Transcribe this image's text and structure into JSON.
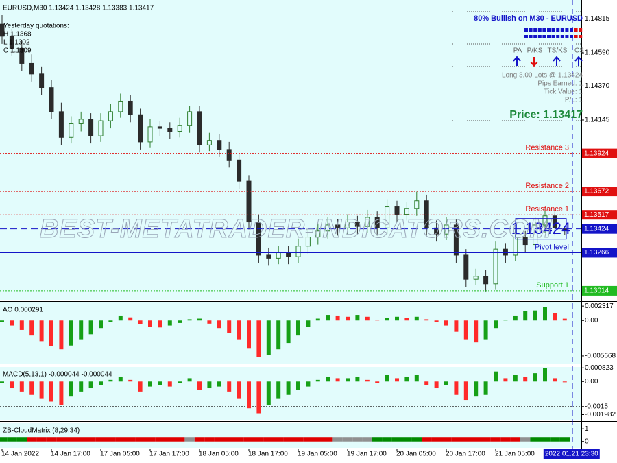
{
  "chart_data": [
    {
      "type": "candlestick",
      "title": "EURUSD,M30  1.13424 1.13428 1.13383 1.13417",
      "categories": [
        "14 Jan 2022",
        null,
        null,
        null,
        null,
        "14 Jan 17:00",
        null,
        null,
        null,
        null,
        "17 Jan 05:00",
        null,
        null,
        null,
        null,
        "17 Jan 17:00",
        null,
        null,
        null,
        null,
        "18 Jan 05:00",
        null,
        null,
        null,
        null,
        "18 Jan 17:00",
        null,
        null,
        null,
        null,
        "19 Jan 05:00",
        null,
        null,
        null,
        null,
        "19 Jan 17:00",
        null,
        null,
        null,
        null,
        "20 Jan 05:00",
        null,
        null,
        null,
        null,
        "20 Jan 17:00",
        null,
        null,
        null,
        null,
        "21 Jan 05:00",
        null,
        null,
        null,
        null,
        null,
        null,
        "2022.01.21 23:30"
      ],
      "open": [
        1.1478,
        1.147,
        1.1462,
        1.1452,
        1.1445,
        1.1436,
        1.142,
        1.1403,
        1.1412,
        1.1415,
        1.1404,
        1.1414,
        1.142,
        1.1427,
        1.1418,
        1.14,
        1.141,
        1.1409,
        1.1407,
        1.1411,
        1.142,
        1.1398,
        1.1401,
        1.1395,
        1.1388,
        1.1374,
        1.1347,
        1.1325,
        1.1323,
        1.1327,
        1.1324,
        1.1331,
        1.1337,
        1.1341,
        1.1345,
        1.1343,
        1.1347,
        1.1344,
        1.135,
        1.1343,
        1.1357,
        1.1352,
        1.1356,
        1.1361,
        1.1343,
        1.1339,
        1.1345,
        1.1325,
        1.1309,
        1.1311,
        1.1306,
        1.1329,
        1.1325,
        1.1337,
        1.1332,
        1.1345,
        1.1351,
        1.13424
      ],
      "high": [
        1.1484,
        1.1475,
        1.1467,
        1.1458,
        1.145,
        1.1441,
        1.1426,
        1.1417,
        1.142,
        1.1419,
        1.1419,
        1.1425,
        1.1432,
        1.1431,
        1.1422,
        1.1415,
        1.1414,
        1.1413,
        1.1416,
        1.1424,
        1.1424,
        1.1406,
        1.1405,
        1.14,
        1.1392,
        1.1378,
        1.1352,
        1.133,
        1.1331,
        1.1331,
        1.1336,
        1.1342,
        1.1346,
        1.135,
        1.1349,
        1.1352,
        1.1351,
        1.1355,
        1.1354,
        1.1362,
        1.1361,
        1.136,
        1.1367,
        1.1365,
        1.1348,
        1.135,
        1.1349,
        1.1329,
        1.1316,
        1.1315,
        1.1334,
        1.1333,
        1.1342,
        1.1341,
        1.135,
        1.1356,
        1.1355,
        1.13428
      ],
      "low": [
        1.1465,
        1.1457,
        1.1447,
        1.144,
        1.1431,
        1.1415,
        1.1398,
        1.1399,
        1.1407,
        1.1399,
        1.14,
        1.1409,
        1.1416,
        1.1413,
        1.1395,
        1.1396,
        1.1404,
        1.1402,
        1.1403,
        1.1406,
        1.1393,
        1.1394,
        1.139,
        1.1383,
        1.1369,
        1.1342,
        1.132,
        1.1318,
        1.1319,
        1.1319,
        1.132,
        1.1326,
        1.1332,
        1.1336,
        1.1338,
        1.1339,
        1.1339,
        1.134,
        1.1338,
        1.1339,
        1.1347,
        1.1348,
        1.1351,
        1.1338,
        1.1334,
        1.1335,
        1.132,
        1.1304,
        1.1305,
        1.1301,
        1.1302,
        1.132,
        1.1321,
        1.1327,
        1.1328,
        1.134,
        1.1338,
        1.13383
      ],
      "close": [
        1.147,
        1.1462,
        1.1452,
        1.1445,
        1.1436,
        1.142,
        1.1403,
        1.1412,
        1.1415,
        1.1404,
        1.1414,
        1.142,
        1.1427,
        1.1418,
        1.14,
        1.141,
        1.1409,
        1.1407,
        1.1411,
        1.142,
        1.1398,
        1.1401,
        1.1395,
        1.1388,
        1.1374,
        1.1347,
        1.1325,
        1.1323,
        1.1327,
        1.1324,
        1.1331,
        1.1337,
        1.1341,
        1.1345,
        1.1343,
        1.1347,
        1.1344,
        1.135,
        1.1343,
        1.1357,
        1.1352,
        1.1356,
        1.1361,
        1.1343,
        1.1339,
        1.1345,
        1.1325,
        1.1309,
        1.1311,
        1.1306,
        1.1329,
        1.1325,
        1.1337,
        1.1332,
        1.1345,
        1.1351,
        1.1343,
        1.13417
      ],
      "up_color": "#2f7f2f",
      "down_color": "#2b2b2b",
      "ylim": [
        1.1295,
        1.1494
      ],
      "yticks": [
        1.14815,
        {
          "value": 1.1459,
          "label": "1.14590"
        },
        {
          "value": 1.1437,
          "label": "1.14370"
        },
        1.14145
      ],
      "levels": [
        {
          "label": "Resistance 3",
          "value": 1.13924,
          "color": "#e01010",
          "style": "dotted"
        },
        {
          "label": "Resistance 2",
          "value": 1.13672,
          "color": "#e01010",
          "style": "dotted"
        },
        {
          "label": "Resistance 1",
          "value": 1.13517,
          "color": "#e01010",
          "style": "dotted"
        },
        {
          "value": 1.13424,
          "color": "#1414c8",
          "style": "dashed"
        },
        {
          "label": "Pivot level",
          "value": 1.13266,
          "color": "#1414c8",
          "style": "solid"
        },
        {
          "label": "Support 1",
          "value": 1.13014,
          "color": "#22bb22",
          "style": "dotted"
        }
      ],
      "yesterday": [
        "Yesterday quotations:",
        "H 1.1368",
        "L 1.1302",
        "C 1.1309"
      ],
      "watermark": "BEST-METATRADER-INDICATORS.COM",
      "panel": {
        "bias": "80% Bullish on M30 - EURUSD",
        "columns": [
          "PA",
          "P/KS",
          "TS/KS",
          "CS"
        ],
        "arrows": [
          "up",
          "down",
          "up",
          "up"
        ],
        "arrow_colors": [
          "#1414c8",
          "#e01010",
          "#1414c8",
          "#1414c8"
        ],
        "lines": [
          "Long 3.00 Lots @ 1.13424",
          "Pips Earned: 1",
          "Tick Value: 1",
          "P/L: 1"
        ],
        "price": "Price: 1.13417",
        "price_color": "#1e8a3c"
      }
    },
    {
      "type": "bar",
      "title": "AO 0.000291",
      "values": [
        -0.0002,
        -0.0008,
        -0.0015,
        -0.0024,
        -0.0033,
        -0.0041,
        -0.0046,
        -0.004,
        -0.003,
        -0.0022,
        -0.0012,
        -0.0003,
        0.0008,
        0.0005,
        -0.0006,
        -0.001,
        -0.0011,
        -0.0008,
        -0.0004,
        0.0002,
        0.0003,
        -0.0005,
        -0.0012,
        -0.002,
        -0.003,
        -0.0045,
        -0.0058,
        -0.0055,
        -0.0046,
        -0.0036,
        -0.0024,
        -0.001,
        0.0003,
        0.0009,
        0.0008,
        0.0006,
        0.0009,
        0.0006,
        0.0001,
        0.0004,
        0.0006,
        0.0004,
        0.0006,
        0.0002,
        -0.0003,
        -0.0008,
        -0.0018,
        -0.003,
        -0.0035,
        -0.003,
        -0.0012,
        0.0001,
        0.0008,
        0.0015,
        0.0016,
        0.0022,
        0.0012,
        0.000291
      ],
      "up_color": "#16a016",
      "down_color": "#ff2a2a",
      "ylim": [
        -0.00699,
        0.00288
      ],
      "yticks": [
        0.002317,
        {
          "value": 0,
          "label": "0.00"
        },
        -0.005668
      ]
    },
    {
      "type": "bar",
      "title": "MACD(5,13,1) -0.000044 -0.000044",
      "values": [
        -0.0001,
        -0.0004,
        -0.0006,
        -0.0008,
        -0.001,
        -0.0012,
        -0.0014,
        -0.0009,
        -0.0006,
        -0.0004,
        -0.0002,
        0.0001,
        0.0003,
        0.0001,
        -0.0006,
        -0.0003,
        -0.0002,
        -0.0003,
        -0.0001,
        0.0002,
        -0.0005,
        -0.0004,
        -0.0003,
        -0.0006,
        -0.001,
        -0.0016,
        -0.0019,
        -0.0014,
        -0.001,
        -0.0008,
        -0.0005,
        -0.0003,
        0.0001,
        0.0003,
        0.0002,
        0.0002,
        0.0003,
        0.0001,
        -0.0001,
        0.0004,
        0.0002,
        0.0003,
        0.0004,
        -0.0002,
        -0.0004,
        -0.0002,
        -0.0008,
        -0.0011,
        -0.0009,
        -0.0008,
        0.0006,
        0.0002,
        0.0004,
        0.0003,
        0.0005,
        0.0008,
        0.0002,
        -4.4e-05
      ],
      "up_color": "#16a016",
      "down_color": "#ff2a2a",
      "ylim": [
        -0.00229,
        0.000875
      ],
      "yticks": [
        0.000823,
        {
          "value": 0,
          "label": "0.00"
        },
        -0.0015,
        -0.001982
      ]
    },
    {
      "type": "strip",
      "title": "ZB-CloudMatrix (8,29,34)",
      "colors": [
        "#008a00",
        "#008a00",
        "#008a00",
        "#e00000",
        "#e00000",
        "#e00000",
        "#e00000",
        "#e00000",
        "#e00000",
        "#e00000",
        "#e00000",
        "#e00000",
        "#e00000",
        "#e00000",
        "#e00000",
        "#e00000",
        "#e00000",
        "#e00000",
        "#e00000",
        "#909090",
        "#e00000",
        "#e00000",
        "#e00000",
        "#e00000",
        "#e00000",
        "#e00000",
        "#e00000",
        "#e00000",
        "#e00000",
        "#e00000",
        "#e00000",
        "#e00000",
        "#e00000",
        "#e00000",
        "#909090",
        "#909090",
        "#909090",
        "#909090",
        "#008a00",
        "#008a00",
        "#008a00",
        "#008a00",
        "#008a00",
        "#e00000",
        "#e00000",
        "#e00000",
        "#e00000",
        "#e00000",
        "#e00000",
        "#e00000",
        "#e00000",
        "#e00000",
        "#e00000",
        "#909090",
        "#008a00",
        "#008a00",
        "#008a00",
        "#008a00"
      ],
      "ylim": [
        -0.5,
        1.44
      ],
      "yticks": [
        1,
        0
      ]
    }
  ]
}
